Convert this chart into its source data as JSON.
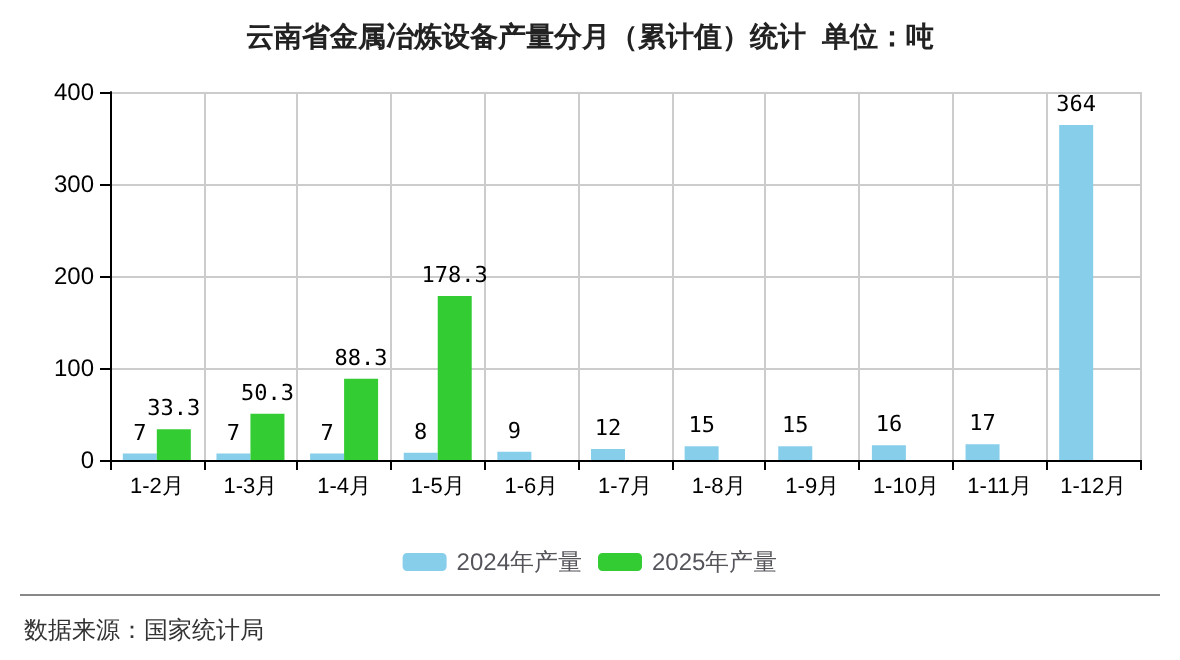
{
  "chart_data": {
    "type": "bar",
    "title": "云南省金属冶炼设备产量分月（累计值）统计  单位：吨",
    "categories": [
      "1-2月",
      "1-3月",
      "1-4月",
      "1-5月",
      "1-6月",
      "1-7月",
      "1-8月",
      "1-9月",
      "1-10月",
      "1-11月",
      "1-12月"
    ],
    "series": [
      {
        "name": "2024年产量",
        "color": "#87ceeb",
        "values": [
          7,
          7,
          7,
          8,
          9,
          12,
          15,
          15,
          16,
          17,
          364
        ]
      },
      {
        "name": "2025年产量",
        "color": "#33cc33",
        "values": [
          33.3,
          50.3,
          88.3,
          178.3,
          null,
          null,
          null,
          null,
          null,
          null,
          null
        ]
      }
    ],
    "ylim": [
      0,
      400
    ],
    "yticks": [
      0,
      100,
      200,
      300,
      400
    ],
    "grid": true,
    "legend": "bottom",
    "data_labels": true,
    "annotations": [
      "数据来源：国家统计局"
    ]
  }
}
